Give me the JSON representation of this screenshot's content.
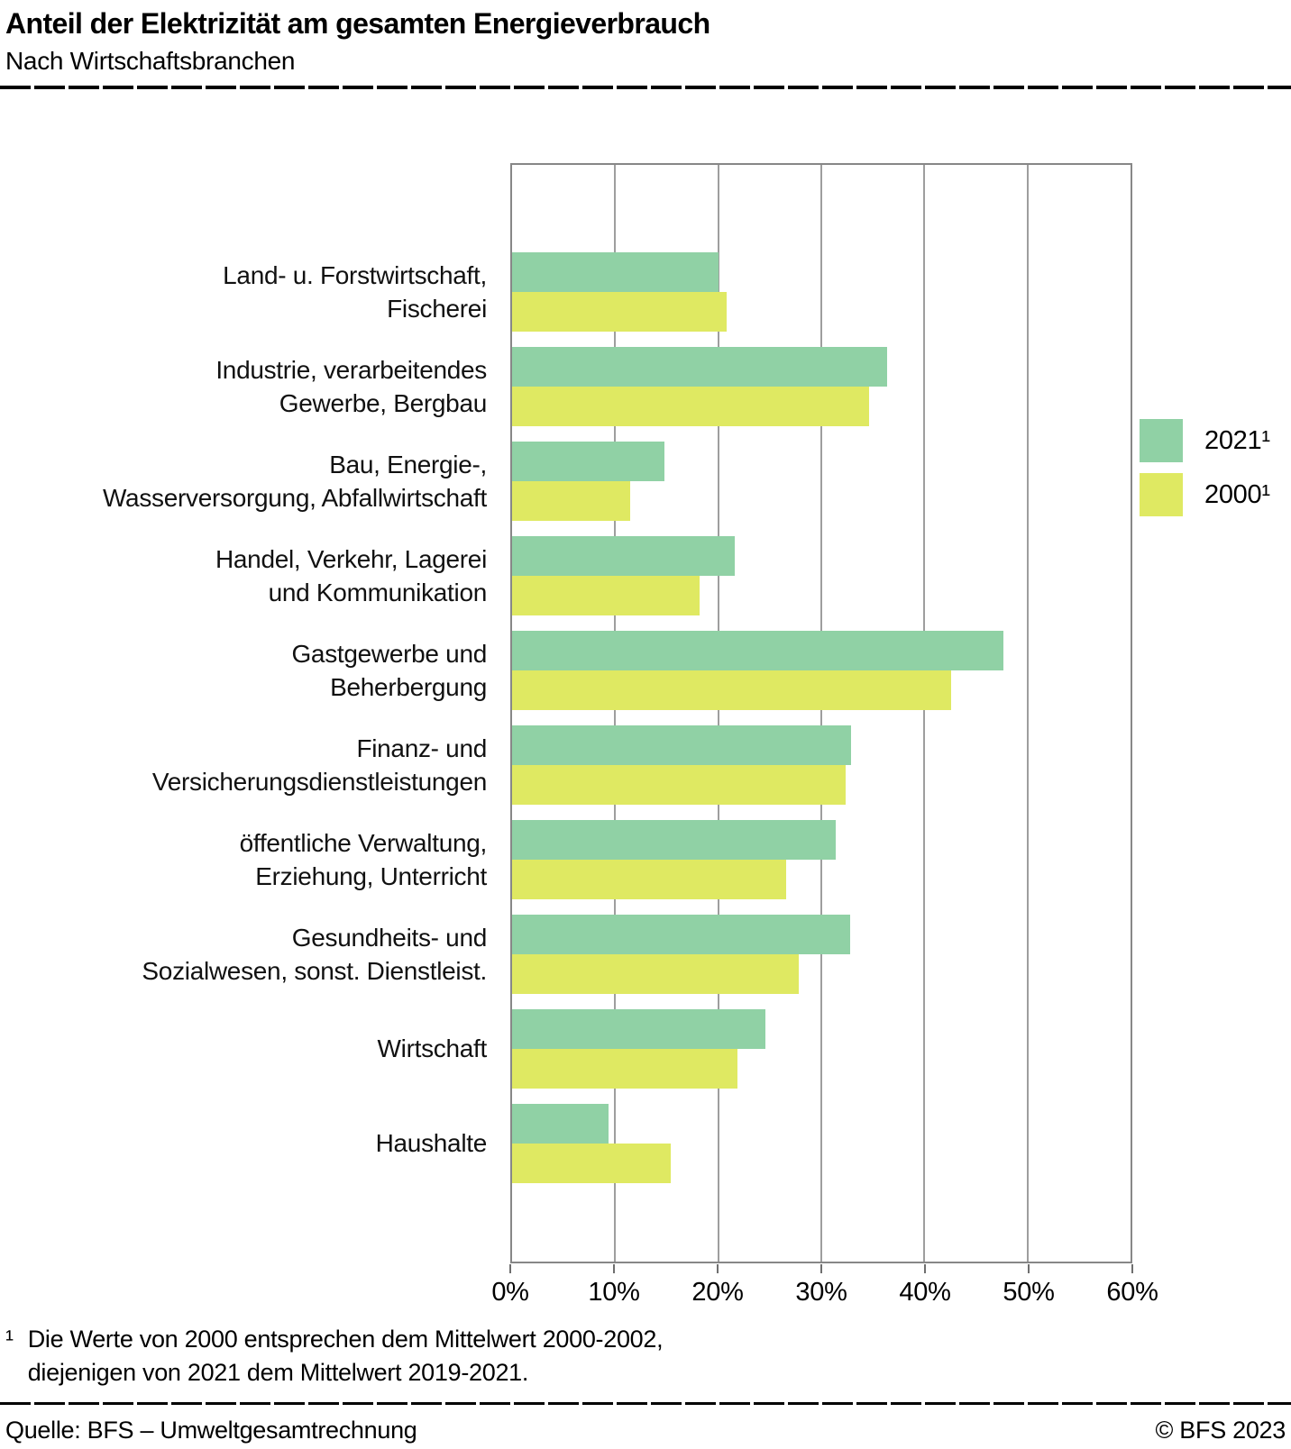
{
  "header": {
    "title": "Anteil der Elektrizität am gesamten Energieverbrauch",
    "subtitle": "Nach Wirtschaftsbranchen"
  },
  "legend": [
    {
      "label": "2021¹",
      "color": "#90d1a5"
    },
    {
      "label": "2000¹",
      "color": "#dfe962"
    }
  ],
  "chart_data": {
    "type": "bar",
    "orientation": "horizontal",
    "title": "Anteil der Elektrizität am gesamten Energieverbrauch",
    "subtitle": "Nach Wirtschaftsbranchen",
    "categories": [
      "Land- u. Forstwirtschaft,\nFischerei",
      "Industrie, verarbeitendes\nGewerbe, Bergbau",
      "Bau, Energie-,\nWasserversorgung, Abfallwirtschaft",
      "Handel, Verkehr, Lagerei\nund Kommunikation",
      "Gastgewerbe und\nBeherbergung",
      "Finanz- und\nVersicherungsdienstleistungen",
      "öffentliche Verwaltung,\nErziehung, Unterricht",
      "Gesundheits- und\nSozialwesen, sonst. Dienstleist.",
      "Wirtschaft",
      "Haushalte"
    ],
    "series": [
      {
        "name": "2021¹",
        "color": "#90d1a5",
        "values": [
          20.0,
          36.4,
          14.8,
          21.6,
          47.7,
          32.9,
          31.4,
          32.8,
          24.6,
          9.4
        ]
      },
      {
        "name": "2000¹",
        "color": "#dfe962",
        "values": [
          20.8,
          34.6,
          11.5,
          18.2,
          42.6,
          32.4,
          26.6,
          27.8,
          21.9,
          15.4
        ]
      }
    ],
    "xlim": [
      0,
      60
    ],
    "xticks": [
      {
        "value": 0,
        "label": "0%"
      },
      {
        "value": 10,
        "label": "10%"
      },
      {
        "value": 20,
        "label": "20%"
      },
      {
        "value": 30,
        "label": "30%"
      },
      {
        "value": 40,
        "label": "40%"
      },
      {
        "value": 50,
        "label": "50%"
      },
      {
        "value": 60,
        "label": "60%"
      }
    ],
    "grid": true,
    "legend_position": "right"
  },
  "footnote": {
    "marker": "¹",
    "line1": "Die Werte von 2000 entsprechen dem Mittelwert 2000-2002,",
    "line2": "diejenigen von 2021 dem Mittelwert 2019-2021."
  },
  "footer": {
    "source": "Quelle: BFS – Umweltgesamtrechnung",
    "copyright": "© BFS 2023"
  }
}
